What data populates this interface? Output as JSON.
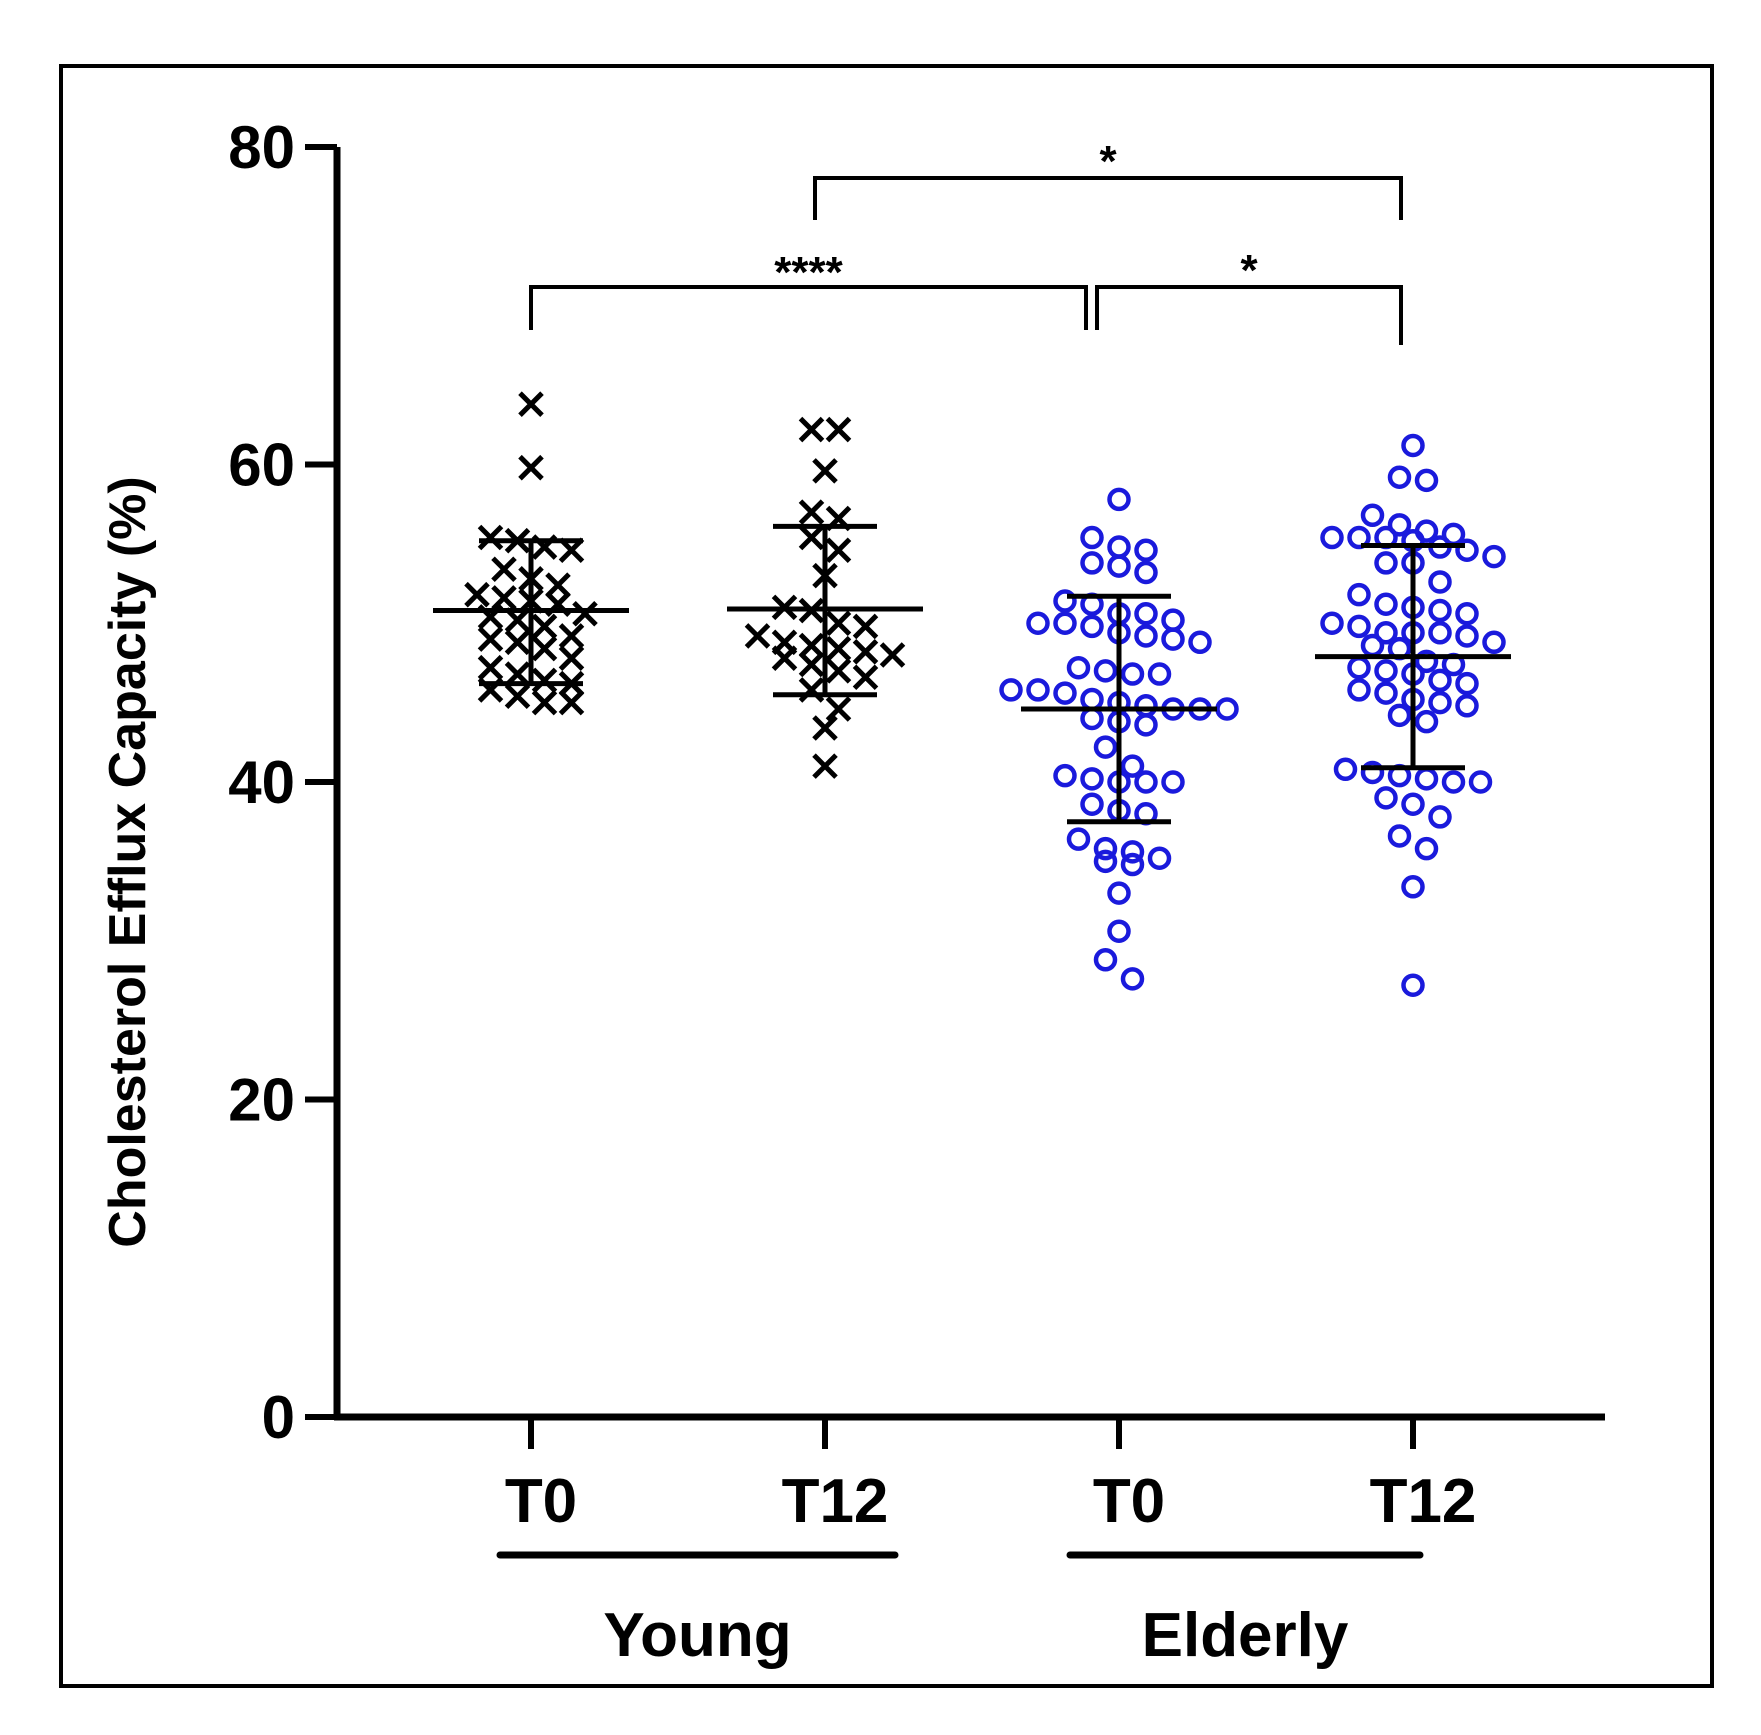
{
  "chart_data": {
    "type": "scatter",
    "title": "",
    "xlabel": "",
    "ylabel": "Cholesterol Efflux Capacity (%)",
    "ylim": [
      0,
      80
    ],
    "yticks": [
      0,
      20,
      40,
      60,
      80
    ],
    "grid": false,
    "legend": "none",
    "groups": [
      {
        "name": "Young",
        "categories": [
          "T0",
          "T12"
        ]
      },
      {
        "name": "Elderly",
        "categories": [
          "T0",
          "T12"
        ]
      }
    ],
    "series": [
      {
        "name": "Young T0",
        "category": "T0",
        "group": "Young",
        "marker": "x",
        "color": "#000000",
        "mean": 50.8,
        "sd_low": 46.2,
        "sd_high": 55.2,
        "values": [
          63.8,
          59.8,
          55.4,
          55.2,
          54.8,
          54.6,
          53.4,
          52.8,
          52.4,
          51.8,
          51.6,
          51.4,
          51.2,
          50.6,
          50.4,
          50.2,
          49.8,
          49.2,
          49.0,
          48.8,
          48.4,
          47.8,
          47.2,
          46.8,
          46.4,
          46.2,
          45.8,
          45.4,
          45.0,
          45.0
        ]
      },
      {
        "name": "Young T12",
        "category": "T12",
        "group": "Young",
        "marker": "x",
        "color": "#000000",
        "mean": 50.9,
        "sd_low": 45.5,
        "sd_high": 56.1,
        "values": [
          62.2,
          62.2,
          59.6,
          57.0,
          56.6,
          55.4,
          54.6,
          53.0,
          51.0,
          50.8,
          50.0,
          49.8,
          49.2,
          48.8,
          48.6,
          48.4,
          48.2,
          48.0,
          47.8,
          47.4,
          47.0,
          46.6,
          45.8,
          44.6,
          43.4,
          41.0
        ]
      },
      {
        "name": "Elderly T0",
        "category": "T0",
        "group": "Elderly",
        "marker": "circle",
        "color": "#1a1adc",
        "mean": 44.6,
        "sd_low": 37.5,
        "sd_high": 51.7,
        "values": [
          57.8,
          55.4,
          54.8,
          54.6,
          53.8,
          53.6,
          53.2,
          51.4,
          51.2,
          50.6,
          50.6,
          50.2,
          50.0,
          50.0,
          49.8,
          49.4,
          49.2,
          49.0,
          48.8,
          47.2,
          47.0,
          46.8,
          46.8,
          45.8,
          45.8,
          45.6,
          45.2,
          45.0,
          44.8,
          44.6,
          44.6,
          44.6,
          44.0,
          43.8,
          43.6,
          42.2,
          41.0,
          40.4,
          40.2,
          40.0,
          40.0,
          40.0,
          38.6,
          38.2,
          38.0,
          36.4,
          35.8,
          35.6,
          35.2,
          35.0,
          34.8,
          33.0,
          30.6,
          28.8,
          27.6
        ]
      },
      {
        "name": "Elderly T12",
        "category": "T12",
        "group": "Elderly",
        "marker": "circle",
        "color": "#1a1adc",
        "mean": 47.9,
        "sd_low": 40.9,
        "sd_high": 54.9,
        "values": [
          61.2,
          59.2,
          59.0,
          56.8,
          56.2,
          55.8,
          55.6,
          55.4,
          55.4,
          55.4,
          55.2,
          54.8,
          54.6,
          54.2,
          53.8,
          53.8,
          52.6,
          51.8,
          51.2,
          51.0,
          50.8,
          50.6,
          50.0,
          49.8,
          49.4,
          49.4,
          49.4,
          49.2,
          48.8,
          48.6,
          48.4,
          47.6,
          47.4,
          47.2,
          47.0,
          46.8,
          46.4,
          46.2,
          45.8,
          45.6,
          45.2,
          45.0,
          44.8,
          44.2,
          43.8,
          40.8,
          40.6,
          40.4,
          40.2,
          40.0,
          40.0,
          39.0,
          38.6,
          37.8,
          36.6,
          35.8,
          33.4,
          27.2
        ]
      }
    ],
    "annotations": [
      {
        "label": "*",
        "from": "Young T12",
        "to": "Elderly T12"
      },
      {
        "label": "****",
        "from": "Young T0",
        "to": "Elderly T0"
      },
      {
        "label": "*",
        "from": "Elderly T0",
        "to": "Elderly T12"
      }
    ]
  }
}
